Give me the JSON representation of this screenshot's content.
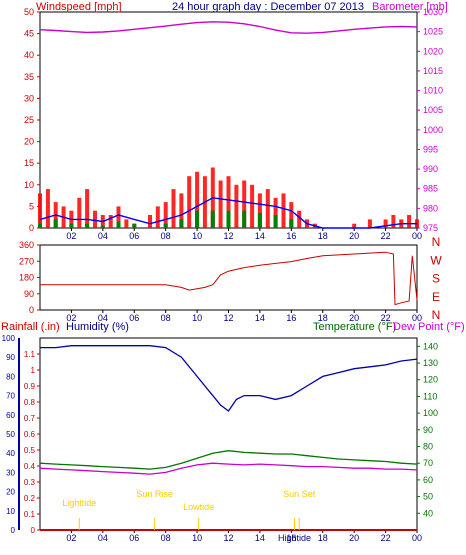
{
  "header": {
    "windspeed_label": "Windspeed [mph]",
    "title": "24 hour graph day : December 07 2013",
    "barometer_label": "Barometer [mb]"
  },
  "bottom_header": {
    "rainfall_label": "Rainfall (.in)",
    "humidity_label": "Humidity (%)",
    "temperature_label": "Temperature (°F)",
    "dewpoint_label": "Dew Point (°F)"
  },
  "colors": {
    "wind": "#ff0000",
    "gust": "#ff0000",
    "avg": "#0000ff",
    "lull": "#008000",
    "barometer": "#cc00cc",
    "direction": "#cc0000",
    "humidity": "#0000aa",
    "temperature": "#007700",
    "dewpoint": "#cc00cc",
    "rain": "#cc0000",
    "astro": "#ffcc00",
    "frame": "#000000",
    "grid": "#cccccc"
  },
  "chart_data": [
    {
      "type": "line",
      "panel": "wind_barometer",
      "x_ticks": [
        "02",
        "04",
        "06",
        "08",
        "10",
        "12",
        "14",
        "16",
        "18",
        "20",
        "22",
        "00"
      ],
      "x_range_hours": [
        0,
        24
      ],
      "left_axis": {
        "label": "Windspeed [mph]",
        "range": [
          0,
          50
        ],
        "ticks": [
          0,
          5,
          10,
          15,
          20,
          25,
          30,
          35,
          40,
          45,
          50
        ]
      },
      "right_axis": {
        "label": "Barometer [mb]",
        "range": [
          975,
          1030
        ],
        "ticks": [
          975,
          980,
          985,
          990,
          995,
          1000,
          1005,
          1010,
          1015,
          1020,
          1025,
          1030
        ]
      },
      "grid": false,
      "series": [
        {
          "name": "Barometer [mb]",
          "axis": "right",
          "x": [
            0,
            1,
            2,
            3,
            4,
            5,
            6,
            7,
            8,
            9,
            10,
            11,
            12,
            13,
            14,
            15,
            16,
            17,
            18,
            19,
            20,
            21,
            22,
            23,
            24
          ],
          "y": [
            1025.5,
            1025.3,
            1025.0,
            1024.8,
            1024.9,
            1025.2,
            1025.6,
            1026.0,
            1026.4,
            1026.9,
            1027.3,
            1027.5,
            1027.4,
            1027.0,
            1026.3,
            1025.4,
            1024.7,
            1024.6,
            1024.8,
            1025.2,
            1025.6,
            1025.9,
            1026.2,
            1026.3,
            1026.2
          ]
        },
        {
          "name": "Wind gust",
          "axis": "left",
          "x": [
            0,
            0.5,
            1,
            1.5,
            2,
            2.5,
            3,
            3.5,
            4,
            4.5,
            5,
            5.5,
            6,
            6.5,
            7,
            7.5,
            8,
            8.5,
            9,
            9.5,
            10,
            10.5,
            11,
            11.5,
            12,
            12.5,
            13,
            13.5,
            14,
            14.5,
            15,
            15.5,
            16,
            16.5,
            17,
            17.5,
            18,
            18.5,
            19,
            19.5,
            20,
            20.5,
            21,
            21.5,
            22,
            22.5,
            23,
            23.5,
            24
          ],
          "y": [
            8,
            9,
            6,
            5,
            4,
            7,
            9,
            4,
            3,
            3,
            5,
            2,
            1,
            0,
            3,
            5,
            6,
            9,
            8,
            12,
            13,
            12,
            14,
            11,
            12,
            10,
            11,
            10,
            8,
            9,
            7,
            8,
            6,
            4,
            2,
            1,
            0,
            0,
            0,
            0,
            1,
            0,
            2,
            0,
            2,
            3,
            2,
            3,
            2
          ]
        },
        {
          "name": "Wind average",
          "axis": "left",
          "x": [
            0,
            1,
            2,
            3,
            4,
            5,
            6,
            7,
            8,
            9,
            10,
            11,
            12,
            13,
            14,
            15,
            16,
            17,
            18,
            19,
            20,
            21,
            22,
            23,
            24
          ],
          "y": [
            2,
            3,
            2,
            2,
            1.5,
            3,
            2,
            1,
            2,
            3,
            5,
            7,
            6.5,
            6,
            5.5,
            5,
            4,
            1,
            0,
            0,
            0,
            0,
            0.5,
            1,
            1
          ]
        },
        {
          "name": "Wind lull",
          "axis": "left",
          "x": [
            0,
            1,
            2,
            3,
            4,
            5,
            6,
            7,
            8,
            9,
            10,
            11,
            12,
            13,
            14,
            15,
            16,
            17,
            18,
            19,
            20,
            21,
            22,
            23,
            24
          ],
          "y": [
            1,
            2,
            1,
            1,
            0.5,
            1.5,
            1,
            0,
            1,
            2,
            4,
            4,
            4,
            4,
            3.5,
            3,
            2,
            0,
            0,
            0,
            0,
            0,
            0,
            0,
            0
          ]
        }
      ]
    },
    {
      "type": "line",
      "panel": "wind_direction",
      "x_ticks": [
        "02",
        "04",
        "06",
        "08",
        "10",
        "12",
        "14",
        "16",
        "18",
        "20",
        "22",
        "00"
      ],
      "x_range_hours": [
        0,
        24
      ],
      "left_axis": {
        "range": [
          0,
          360
        ],
        "ticks": [
          0,
          90,
          180,
          270,
          360
        ]
      },
      "right_axis_labels": [
        "N",
        "W",
        "S",
        "E",
        "N"
      ],
      "grid": false,
      "series": [
        {
          "name": "Wind direction",
          "x": [
            0,
            2,
            4,
            6,
            8,
            9,
            9.5,
            10,
            10.5,
            11,
            11.5,
            12,
            12.5,
            13,
            14,
            15,
            16,
            17,
            18,
            19,
            20,
            21,
            22,
            22.5,
            22.6,
            23,
            23.5,
            23.7,
            24
          ],
          "y": [
            140,
            140,
            140,
            140,
            140,
            125,
            110,
            118,
            125,
            140,
            195,
            215,
            225,
            235,
            248,
            258,
            268,
            285,
            300,
            305,
            310,
            315,
            320,
            310,
            30,
            40,
            50,
            300,
            55
          ]
        }
      ]
    },
    {
      "type": "line",
      "panel": "rain_humidity_temperature",
      "x_ticks": [
        "02",
        "04",
        "06",
        "08",
        "10",
        "12",
        "14",
        "16",
        "18",
        "20",
        "22",
        "00"
      ],
      "x_range_hours": [
        0,
        24
      ],
      "humidity_axis": {
        "label": "Humidity (%)",
        "range": [
          0,
          100
        ],
        "ticks": [
          0,
          10,
          20,
          30,
          40,
          50,
          60,
          70,
          80,
          90,
          100
        ]
      },
      "rain_axis": {
        "label": "Rainfall (.in)",
        "range": [
          0,
          1.2
        ],
        "ticks": [
          0,
          0.1,
          0.2,
          0.3,
          0.4,
          0.5,
          0.6,
          0.7,
          0.8,
          0.9,
          1,
          1.1
        ]
      },
      "temperature_axis": {
        "label": "Temperature (°F)",
        "range": [
          30,
          145
        ],
        "ticks": [
          40,
          50,
          60,
          70,
          80,
          90,
          100,
          110,
          120,
          130,
          140
        ]
      },
      "annotations": [
        {
          "text": "Lighttide",
          "x": 2.5
        },
        {
          "text": "Sun Rise",
          "x": 7.3
        },
        {
          "text": "Lowtide",
          "x": 10.1
        },
        {
          "text": "Hightide",
          "x": 16.2
        },
        {
          "text": "Sun Set",
          "x": 16.5
        }
      ],
      "grid": false,
      "series": [
        {
          "name": "Humidity (%)",
          "axis": "humidity",
          "x": [
            0,
            1,
            2,
            3,
            4,
            5,
            6,
            7,
            8,
            9,
            10,
            10.5,
            11,
            11.5,
            12,
            12.5,
            13,
            14,
            15,
            16,
            17,
            18,
            19,
            20,
            21,
            22,
            23,
            24
          ],
          "y": [
            95,
            95,
            96,
            96,
            96,
            96,
            96,
            96,
            95,
            90,
            80,
            75,
            70,
            65,
            62,
            68,
            70,
            70,
            68,
            70,
            75,
            80,
            82,
            84,
            85,
            86,
            88,
            89
          ]
        },
        {
          "name": "Temperature (°F)",
          "axis": "temperature",
          "x": [
            0,
            1,
            2,
            3,
            4,
            5,
            6,
            7,
            8,
            9,
            10,
            11,
            12,
            13,
            14,
            15,
            16,
            17,
            18,
            19,
            20,
            21,
            22,
            23,
            24
          ],
          "y": [
            70,
            69.5,
            69,
            68.5,
            68,
            67.5,
            67,
            66.5,
            67.5,
            70,
            73,
            76,
            77.5,
            76.5,
            76,
            75.5,
            75.5,
            74.5,
            73.5,
            72.5,
            72,
            71.5,
            71,
            70,
            69.5
          ]
        },
        {
          "name": "Dew Point (°F)",
          "axis": "temperature",
          "x": [
            0,
            1,
            2,
            3,
            4,
            5,
            6,
            7,
            8,
            9,
            10,
            11,
            12,
            13,
            14,
            15,
            16,
            17,
            18,
            19,
            20,
            21,
            22,
            23,
            24
          ],
          "y": [
            67,
            66.5,
            66,
            65.5,
            65,
            64.5,
            64,
            63.5,
            64.5,
            67,
            69,
            70,
            69.5,
            69,
            69.5,
            69,
            68.5,
            68,
            68,
            67.5,
            67,
            67,
            66.5,
            66.5,
            66
          ]
        },
        {
          "name": "Rainfall (.in)",
          "axis": "rain",
          "x": [
            0,
            24
          ],
          "y": [
            0,
            0
          ]
        }
      ]
    }
  ]
}
